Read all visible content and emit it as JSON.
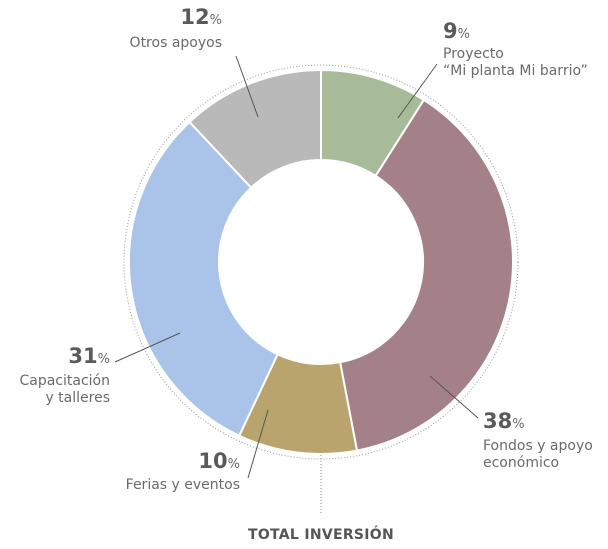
{
  "chart_data": {
    "type": "pie",
    "subtitle": "TOTAL INVERSIÓN",
    "unit": "%",
    "categories": [
      [
        "Proyecto",
        "“Mi planta Mi barrio”"
      ],
      [
        "Fondos y apoyo",
        "económico"
      ],
      [
        "Ferias y eventos"
      ],
      [
        "Capacitación",
        "y talleres"
      ],
      [
        "Otros apoyos"
      ]
    ],
    "values": [
      9,
      38,
      10,
      31,
      12
    ],
    "colors": [
      "#a8bb98",
      "#a48189",
      "#b9a46e",
      "#a9c4e8",
      "#b9b9b9"
    ]
  }
}
